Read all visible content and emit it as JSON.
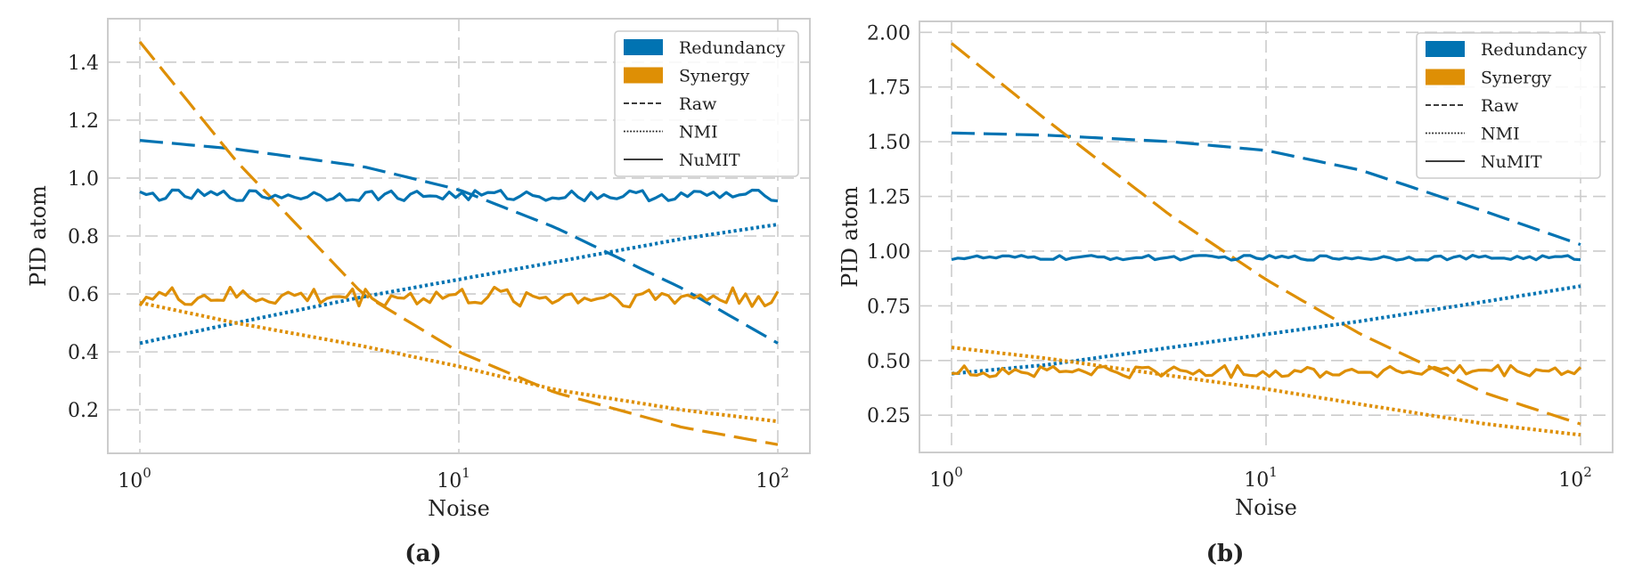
{
  "chart_data": [
    {
      "type": "line",
      "panel": "a",
      "caption": "(a)",
      "xlabel": "Noise",
      "ylabel": "PID atom",
      "xscale": "log",
      "xlim": [
        1,
        100
      ],
      "ylim": [
        0.05,
        1.55
      ],
      "xticks": [
        {
          "base": "10",
          "exp": "0",
          "value": 1
        },
        {
          "base": "10",
          "exp": "1",
          "value": 10
        },
        {
          "base": "10",
          "exp": "2",
          "value": 100
        }
      ],
      "yticks": [
        {
          "label": "0.2",
          "value": 0.2
        },
        {
          "label": "0.4",
          "value": 0.4
        },
        {
          "label": "0.6",
          "value": 0.6
        },
        {
          "label": "0.8",
          "value": 0.8
        },
        {
          "label": "1.0",
          "value": 1.0
        },
        {
          "label": "1.2",
          "value": 1.2
        },
        {
          "label": "1.4",
          "value": 1.4
        }
      ],
      "grid": true,
      "legend_position": "top-right",
      "series": [
        {
          "name": "Redundancy Raw",
          "atom": "redundancy",
          "method": "raw",
          "x": [
            1,
            2,
            5,
            10,
            20,
            50,
            100
          ],
          "values": [
            1.13,
            1.1,
            1.04,
            0.96,
            0.83,
            0.62,
            0.43
          ]
        },
        {
          "name": "Synergy Raw",
          "atom": "synergy",
          "method": "raw",
          "x": [
            1,
            2,
            5,
            10,
            20,
            50,
            100
          ],
          "values": [
            1.47,
            1.06,
            0.6,
            0.4,
            0.26,
            0.14,
            0.08
          ]
        },
        {
          "name": "Redundancy NMI",
          "atom": "redundancy",
          "method": "nmi",
          "x": [
            1,
            2,
            5,
            10,
            20,
            50,
            100
          ],
          "values": [
            0.43,
            0.5,
            0.59,
            0.65,
            0.71,
            0.79,
            0.84
          ]
        },
        {
          "name": "Synergy NMI",
          "atom": "synergy",
          "method": "nmi",
          "x": [
            1,
            2,
            5,
            10,
            20,
            50,
            100
          ],
          "values": [
            0.57,
            0.5,
            0.42,
            0.35,
            0.27,
            0.2,
            0.16
          ]
        },
        {
          "name": "Redundancy NuMIT",
          "atom": "redundancy",
          "method": "numit",
          "x": [
            1,
            100
          ],
          "values": [
            0.94,
            0.94
          ],
          "noise": 0.012
        },
        {
          "name": "Synergy NuMIT",
          "atom": "synergy",
          "method": "numit",
          "x": [
            1,
            100
          ],
          "values": [
            0.59,
            0.59
          ],
          "noise": 0.022
        }
      ]
    },
    {
      "type": "line",
      "panel": "b",
      "caption": "(b)",
      "xlabel": "Noise",
      "ylabel": "PID atom",
      "xscale": "log",
      "xlim": [
        1,
        100
      ],
      "ylim": [
        0.08,
        2.05
      ],
      "xticks": [
        {
          "base": "10",
          "exp": "0",
          "value": 1
        },
        {
          "base": "10",
          "exp": "1",
          "value": 10
        },
        {
          "base": "10",
          "exp": "2",
          "value": 100
        }
      ],
      "yticks": [
        {
          "label": "0.25",
          "value": 0.25
        },
        {
          "label": "0.50",
          "value": 0.5
        },
        {
          "label": "0.75",
          "value": 0.75
        },
        {
          "label": "1.00",
          "value": 1.0
        },
        {
          "label": "1.25",
          "value": 1.25
        },
        {
          "label": "1.50",
          "value": 1.5
        },
        {
          "label": "1.75",
          "value": 1.75
        },
        {
          "label": "2.00",
          "value": 2.0
        }
      ],
      "grid": true,
      "legend_position": "top-right",
      "series": [
        {
          "name": "Redundancy Raw",
          "atom": "redundancy",
          "method": "raw",
          "x": [
            1,
            2,
            5,
            10,
            20,
            50,
            100
          ],
          "values": [
            1.54,
            1.53,
            1.5,
            1.46,
            1.37,
            1.18,
            1.03
          ]
        },
        {
          "name": "Synergy Raw",
          "atom": "synergy",
          "method": "raw",
          "x": [
            1,
            2,
            5,
            10,
            20,
            50,
            100
          ],
          "values": [
            1.95,
            1.6,
            1.16,
            0.87,
            0.62,
            0.35,
            0.21
          ]
        },
        {
          "name": "Redundancy NMI",
          "atom": "redundancy",
          "method": "nmi",
          "x": [
            1,
            2,
            5,
            10,
            20,
            50,
            100
          ],
          "values": [
            0.44,
            0.48,
            0.56,
            0.62,
            0.68,
            0.77,
            0.84
          ]
        },
        {
          "name": "Synergy NMI",
          "atom": "synergy",
          "method": "nmi",
          "x": [
            1,
            2,
            5,
            10,
            20,
            50,
            100
          ],
          "values": [
            0.56,
            0.51,
            0.43,
            0.37,
            0.3,
            0.21,
            0.16
          ]
        },
        {
          "name": "Redundancy NuMIT",
          "atom": "redundancy",
          "method": "numit",
          "x": [
            1,
            100
          ],
          "values": [
            0.97,
            0.97
          ],
          "noise": 0.007
        },
        {
          "name": "Synergy NuMIT",
          "atom": "synergy",
          "method": "numit",
          "x": [
            1,
            100
          ],
          "values": [
            0.45,
            0.45
          ],
          "noise": 0.018
        }
      ]
    }
  ],
  "legend": {
    "entries": [
      {
        "key": "redundancy",
        "label": "Redundancy",
        "kind": "patch"
      },
      {
        "key": "synergy",
        "label": "Synergy",
        "kind": "patch"
      },
      {
        "key": "raw",
        "label": "Raw",
        "kind": "dashed"
      },
      {
        "key": "nmi",
        "label": "NMI",
        "kind": "dotted"
      },
      {
        "key": "numit",
        "label": "NuMIT",
        "kind": "solid"
      }
    ]
  },
  "colors": {
    "redundancy": "#0173b2",
    "synergy": "#de8f05",
    "grid": "#cccccc",
    "axes": "#cccccc",
    "legend_line": "#222222"
  }
}
